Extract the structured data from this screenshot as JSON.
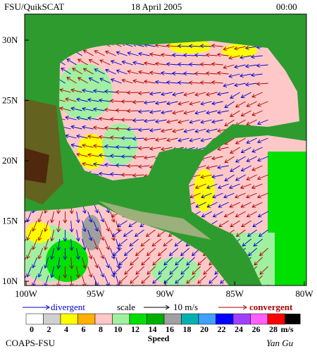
{
  "header": {
    "title": "FSU/QuikSCAT",
    "date": "18 April 2005",
    "time": "00:00"
  },
  "map": {
    "lat_labels": [
      "30N",
      "25N",
      "20N",
      "15N",
      "10N"
    ],
    "lon_labels": [
      "100W",
      "95W",
      "90W",
      "85W",
      "80W"
    ]
  },
  "legend": {
    "divergent": "divergent",
    "scale": "scale",
    "scale_value": "10 m/s",
    "convergent": "convergent",
    "divergent_color": "#0000cc",
    "convergent_color": "#aa0000"
  },
  "colorbar": {
    "labels": [
      0,
      2,
      4,
      6,
      8,
      10,
      12,
      14,
      16,
      18,
      20,
      22,
      24,
      26,
      28
    ],
    "unit": "m/s",
    "title": "Speed",
    "colors": [
      "#ffffff",
      "#d0d0d0",
      "#ffff00",
      "#ffb000",
      "#ffc8c8",
      "#a0f0a0",
      "#00e000",
      "#00b000",
      "#a0a0a0",
      "#00b0b0",
      "#40a0ff",
      "#0000ff",
      "#a040ff",
      "#ff60ff",
      "#ff0000"
    ]
  },
  "footer": {
    "org": "COAPS-FSU",
    "author": "Yan Gu"
  }
}
